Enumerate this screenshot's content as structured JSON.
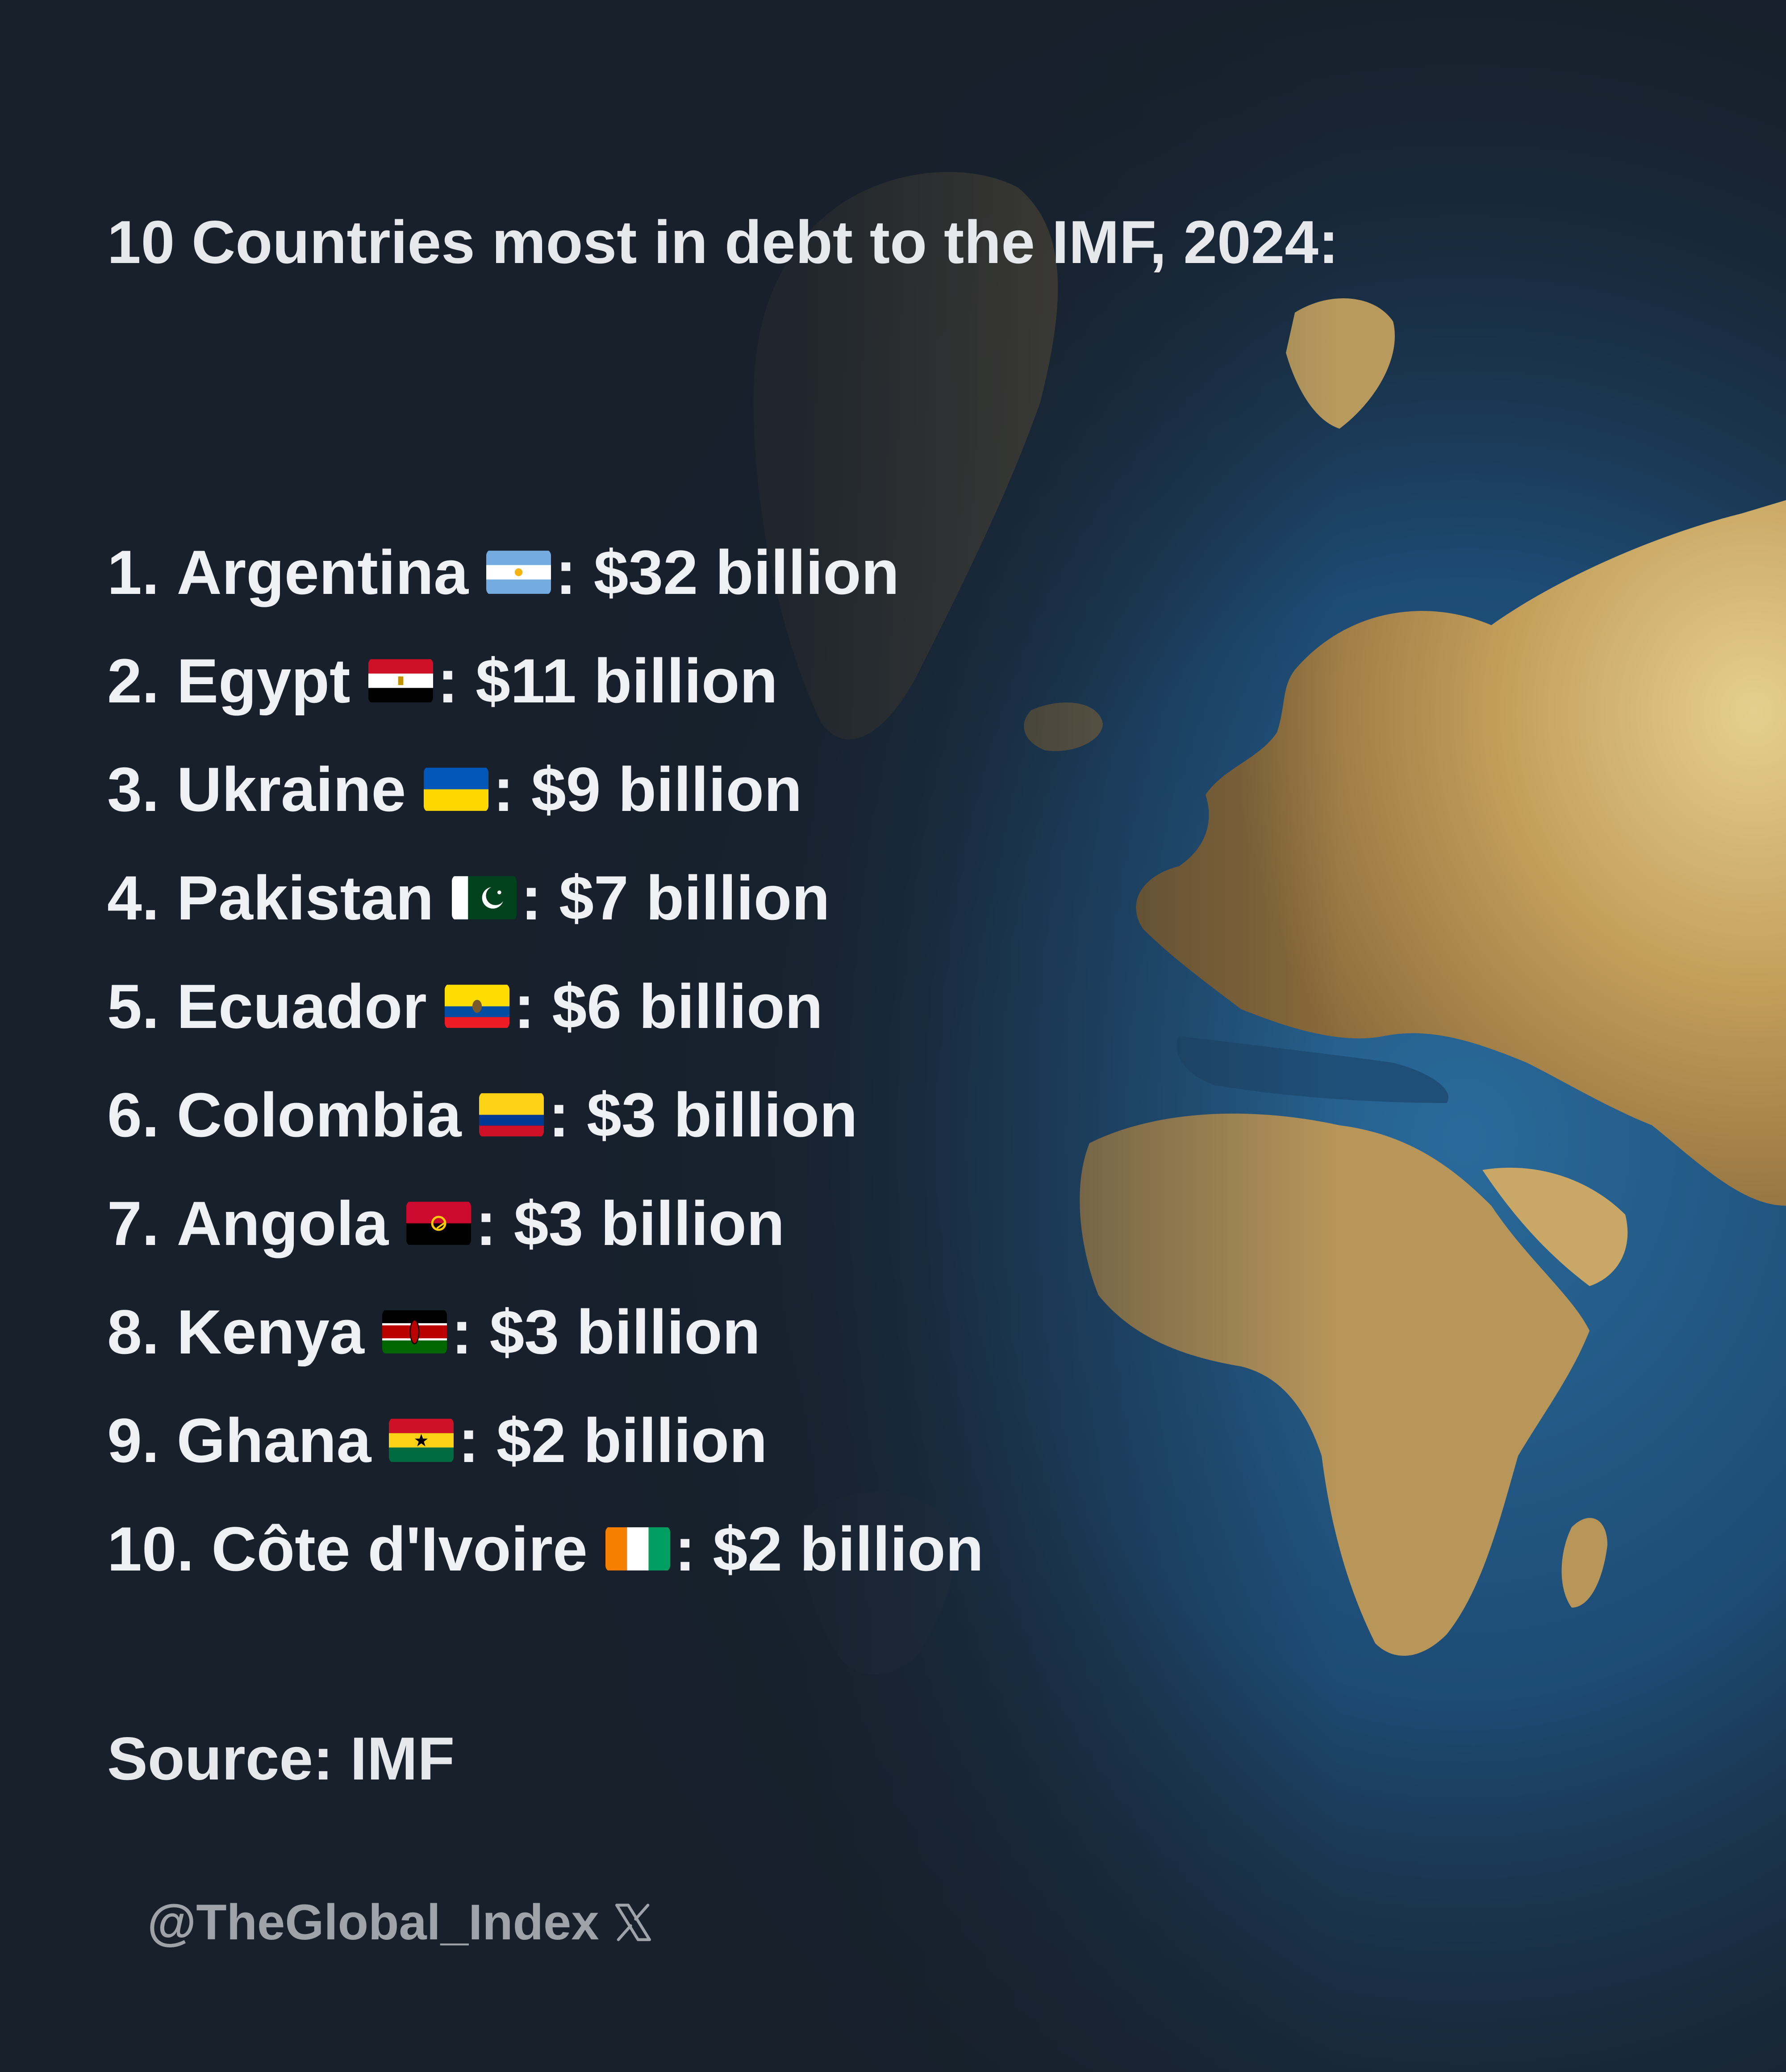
{
  "title": "10 Countries most in debt to the IMF, 2024:",
  "items": [
    {
      "rank": "1.",
      "country": "Argentina",
      "amount": ": $32 billion",
      "flag": "argentina-flag-icon"
    },
    {
      "rank": "2.",
      "country": "Egypt",
      "amount": ": $11 billion",
      "flag": "egypt-flag-icon"
    },
    {
      "rank": "3.",
      "country": "Ukraine",
      "amount": ": $9 billion",
      "flag": "ukraine-flag-icon"
    },
    {
      "rank": "4.",
      "country": "Pakistan",
      "amount": ": $7 billion",
      "flag": "pakistan-flag-icon"
    },
    {
      "rank": "5.",
      "country": "Ecuador",
      "amount": ": $6 billion",
      "flag": "ecuador-flag-icon"
    },
    {
      "rank": "6.",
      "country": "Colombia",
      "amount": ": $3 billion",
      "flag": "colombia-flag-icon"
    },
    {
      "rank": "7.",
      "country": "Angola",
      "amount": ": $3 billion",
      "flag": "angola-flag-icon"
    },
    {
      "rank": "8.",
      "country": "Kenya",
      "amount": ": $3 billion",
      "flag": "kenya-flag-icon"
    },
    {
      "rank": "9.",
      "country": "Ghana",
      "amount": ": $2 billion",
      "flag": "ghana-flag-icon"
    },
    {
      "rank": "10.",
      "country": "Côte d'Ivoire",
      "amount": ": $2 billion",
      "flag": "cote-divoire-flag-icon"
    }
  ],
  "source": "Source: IMF",
  "handle": "@TheGlobal_Index",
  "handle_icon": "x-logo-icon",
  "colors": {
    "background": "#17202b",
    "text": "#eef0f3",
    "handle": "#9ea3aa",
    "land": "#c9a766",
    "ocean": "#1f4f78"
  }
}
